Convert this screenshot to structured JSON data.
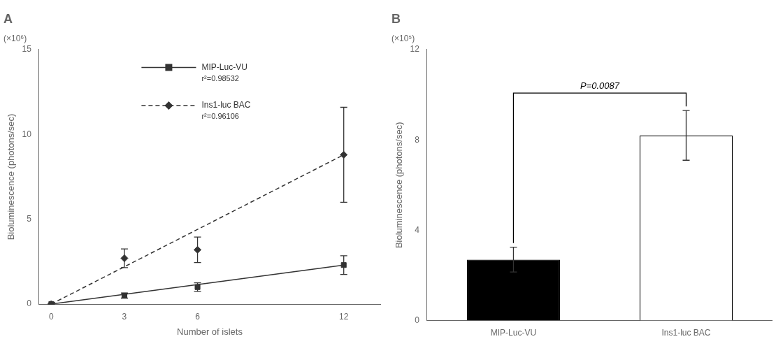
{
  "chart_data": [
    {
      "type": "scatter",
      "title": "A",
      "subtitle": "(×10⁶)",
      "x_label": "Number of islets",
      "y_label": "Bioluminescence (photons/sec)",
      "xlim": [
        -0.5,
        13.5
      ],
      "xticks": [
        0,
        3,
        6,
        12
      ],
      "ylim": [
        0,
        15.0
      ],
      "yticks": [
        0,
        5,
        10,
        15
      ],
      "grid": false,
      "legend": "upper center",
      "x": [
        0,
        3,
        6,
        12
      ],
      "series": [
        {
          "name": "MIP-Luc-VU",
          "color": "#333333",
          "marker": "square",
          "line_style": "solid",
          "values": [
            0.0,
            0.5,
            1.0,
            2.3
          ],
          "errors": [
            0.0,
            0.15,
            0.25,
            0.55
          ],
          "annotation": "r²=0.98532",
          "fit_x": [
            0,
            12
          ],
          "fit_values": [
            0.0,
            2.3
          ]
        },
        {
          "name": "Ins1-luc BAC",
          "color": "#333333",
          "marker": "diamond",
          "line_style": "dashed",
          "values": [
            0.0,
            2.7,
            3.2,
            8.8
          ],
          "errors": [
            0.0,
            0.55,
            0.75,
            2.8
          ],
          "annotation": "r²=0.96106",
          "fit_x": [
            0,
            12
          ],
          "fit_values": [
            0.0,
            8.8
          ]
        }
      ]
    },
    {
      "type": "bar",
      "title": "B",
      "subtitle": "(×10⁵)",
      "y_label": "Bioluminescence (photons/sec)",
      "categories": [
        "MIP-Luc-VU",
        "Ins1-luc BAC"
      ],
      "values": [
        2.7,
        8.2
      ],
      "errors": [
        0.55,
        1.1
      ],
      "colors": [
        "#000000",
        "#ffffff"
      ],
      "ylim": [
        0,
        12.0
      ],
      "yticks": [
        0,
        4,
        8,
        12
      ],
      "grid": false,
      "annotation": "P=0.0087"
    }
  ]
}
